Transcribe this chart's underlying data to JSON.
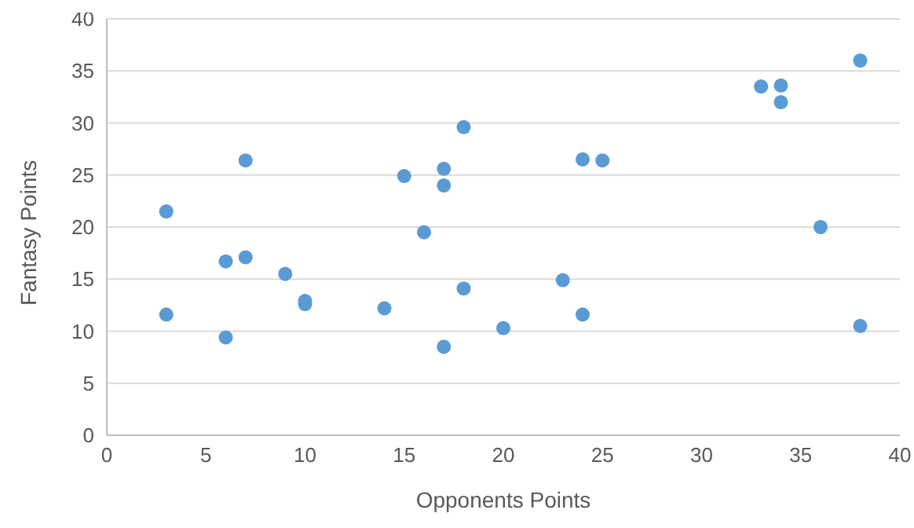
{
  "chart_data": {
    "type": "scatter",
    "xlabel": "Opponents Points",
    "ylabel": "Fantasy Points",
    "x": [
      3,
      3,
      6,
      6,
      7,
      7,
      9,
      10,
      10,
      14,
      15,
      16,
      17,
      17,
      17,
      18,
      18,
      20,
      23,
      24,
      24,
      25,
      33,
      34,
      34,
      36,
      38,
      38
    ],
    "values": [
      21.5,
      11.6,
      16.7,
      9.4,
      26.4,
      17.1,
      15.5,
      12.9,
      12.6,
      12.2,
      24.9,
      19.5,
      25.6,
      24,
      8.5,
      29.6,
      14.1,
      10.3,
      14.9,
      26.5,
      11.6,
      26.4,
      33.5,
      33.6,
      32,
      20,
      36,
      10.5
    ],
    "color": "#5b9bd5",
    "marker": "circle",
    "xlim": [
      0,
      40
    ],
    "xticks": [
      0,
      5,
      10,
      15,
      20,
      25,
      30,
      35,
      40
    ],
    "ylim": [
      0,
      40
    ],
    "yticks": [
      0,
      5,
      10,
      15,
      20,
      25,
      30,
      35,
      40
    ],
    "grid": "y",
    "legend": false
  }
}
